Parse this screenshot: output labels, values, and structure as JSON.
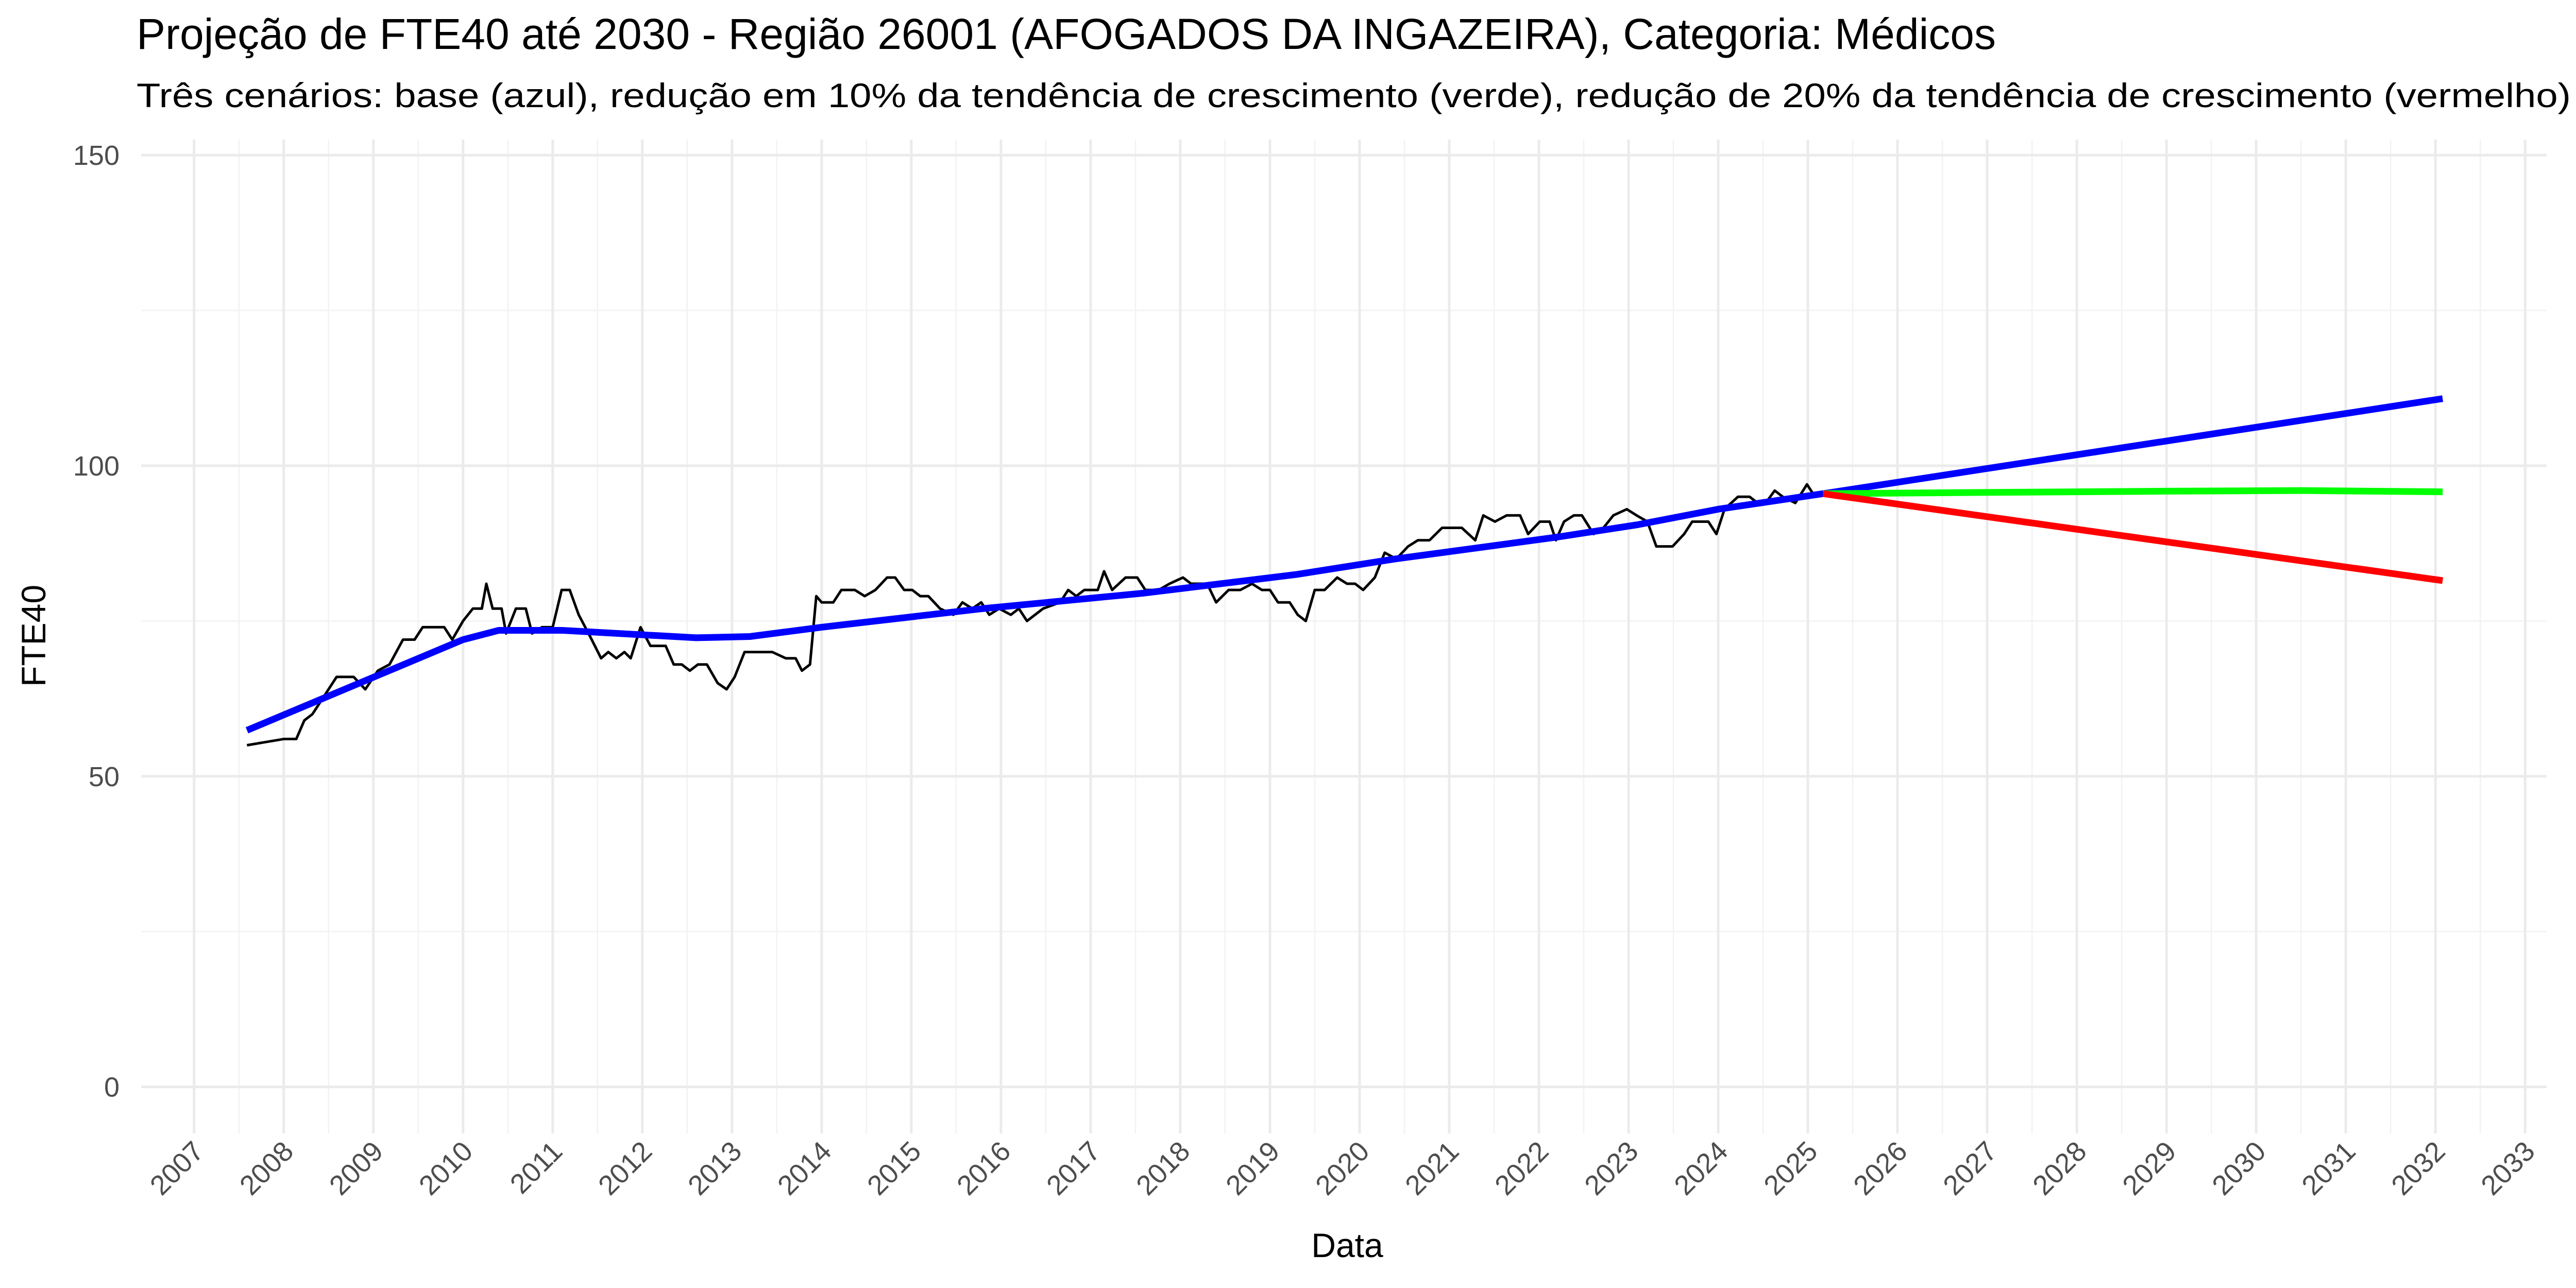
{
  "chart_data": {
    "type": "line",
    "title": "Projeção de FTE40 até 2030 - Região 26001 (AFOGADOS DA INGAZEIRA), Categoria: Médicos",
    "subtitle": "Três cenários: base (azul), redução em 10% da tendência de crescimento (verde), redução de 20% da tendência de crescimento (vermelho)",
    "x_label": "Data",
    "y_label": "FTE40",
    "xlim": [
      2006.41,
      2033.24
    ],
    "ylim": [
      -7.5,
      152.5
    ],
    "xticks": [
      2007,
      2008,
      2009,
      2010,
      2011,
      2012,
      2013,
      2014,
      2015,
      2016,
      2017,
      2018,
      2019,
      2020,
      2021,
      2022,
      2023,
      2024,
      2025,
      2026,
      2027,
      2028,
      2029,
      2030,
      2031,
      2032,
      2033
    ],
    "yticks": [
      0,
      50,
      100,
      150
    ],
    "grid": true,
    "series": [
      {
        "color": "#000000",
        "x": [
          2007.59,
          2008.0,
          2008.14,
          2008.23,
          2008.32,
          2008.41,
          2008.59,
          2008.78,
          2008.91,
          2009.05,
          2009.18,
          2009.33,
          2009.46,
          2009.55,
          2009.79,
          2009.88,
          2010.0,
          2010.11,
          2010.21,
          2010.26,
          2010.33,
          2010.43,
          2010.48,
          2010.59,
          2010.7,
          2010.77,
          2010.88,
          2011.0,
          2011.1,
          2011.19,
          2011.29,
          2011.4,
          2011.54,
          2011.62,
          2011.71,
          2011.8,
          2011.87,
          2011.98,
          2012.09,
          2012.26,
          2012.35,
          2012.44,
          2012.53,
          2012.62,
          2012.72,
          2012.84,
          2012.94,
          2013.03,
          2013.14,
          2013.45,
          2013.6,
          2013.71,
          2013.78,
          2013.87,
          2013.94,
          2014.0,
          2014.13,
          2014.22,
          2014.37,
          2014.48,
          2014.6,
          2014.73,
          2014.82,
          2014.92,
          2015.01,
          2015.1,
          2015.19,
          2015.32,
          2015.47,
          2015.57,
          2015.68,
          2015.78,
          2015.87,
          2015.98,
          2016.11,
          2016.2,
          2016.29,
          2016.47,
          2016.66,
          2016.75,
          2016.84,
          2016.93,
          2017.08,
          2017.15,
          2017.24,
          2017.39,
          2017.52,
          2017.61,
          2017.76,
          2017.88,
          2018.03,
          2018.12,
          2018.3,
          2018.4,
          2018.54,
          2018.67,
          2018.8,
          2018.91,
          2019.0,
          2019.09,
          2019.22,
          2019.31,
          2019.4,
          2019.5,
          2019.61,
          2019.75,
          2019.86,
          2019.95,
          2020.04,
          2020.17,
          2020.28,
          2020.41,
          2020.54,
          2020.65,
          2020.78,
          2020.92,
          2021.14,
          2021.29,
          2021.38,
          2021.51,
          2021.64,
          2021.79,
          2021.88,
          2022.01,
          2022.12,
          2022.19,
          2022.28,
          2022.39,
          2022.48,
          2022.61,
          2022.72,
          2022.83,
          2022.98,
          2023.09,
          2023.21,
          2023.31,
          2023.49,
          2023.62,
          2023.71,
          2023.89,
          2023.98,
          2024.07,
          2024.22,
          2024.35,
          2024.44,
          2024.53,
          2024.63,
          2024.72,
          2024.86,
          2024.99,
          2025.08
        ],
        "values": [
          55,
          56,
          56,
          59,
          60,
          62,
          66,
          66,
          64,
          67,
          68,
          72,
          72,
          74,
          74,
          72,
          75,
          77,
          77,
          81,
          77,
          77,
          73,
          77,
          77,
          73,
          74,
          74,
          80,
          80,
          76,
          73,
          69,
          70,
          69,
          70,
          69,
          74,
          71,
          71,
          68,
          68,
          67,
          68,
          68,
          65,
          64,
          66,
          70,
          70,
          69,
          69,
          67,
          68,
          79,
          78,
          78,
          80,
          80,
          79,
          80,
          82,
          82,
          80,
          80,
          79,
          79,
          77,
          76,
          78,
          77,
          78,
          76,
          77,
          76,
          77,
          75,
          77,
          78,
          80,
          79,
          80,
          80,
          83,
          80,
          82,
          82,
          80,
          80,
          81,
          82,
          81,
          81,
          78,
          80,
          80,
          81,
          80,
          80,
          78,
          78,
          76,
          75,
          80,
          80,
          82,
          81,
          81,
          80,
          82,
          86,
          85,
          87,
          88,
          88,
          90,
          90,
          88,
          92,
          91,
          92,
          92,
          89,
          91,
          91,
          88,
          91,
          92,
          92,
          89,
          90,
          92,
          93,
          92,
          91,
          87,
          87,
          89,
          91,
          91,
          89,
          93,
          95,
          95,
          94,
          94,
          96,
          95,
          94,
          97,
          95
        ]
      },
      {
        "color": "#0000ff",
        "x": [
          2007.59,
          2010.0,
          2010.4,
          2011.1,
          2012.6,
          2013.2,
          2014.0,
          2015.8,
          2017.6,
          2019.3,
          2020.4,
          2022.2,
          2023.1,
          2024.0,
          2025.17,
          2032.08
        ],
        "values": [
          57.4,
          72,
          73.5,
          73.5,
          72.3,
          72.5,
          74,
          77,
          79.5,
          82.5,
          85,
          88.5,
          90.5,
          93,
          95.5,
          110.8
        ]
      },
      {
        "color": "#00ff00",
        "x": [
          2025.17,
          2027,
          2029,
          2030.5,
          2032.08
        ],
        "values": [
          95.5,
          95.7,
          95.9,
          96,
          95.8
        ]
      },
      {
        "color": "#ff0000",
        "x": [
          2025.17,
          2032.08
        ],
        "values": [
          95.5,
          81.5
        ]
      }
    ]
  }
}
